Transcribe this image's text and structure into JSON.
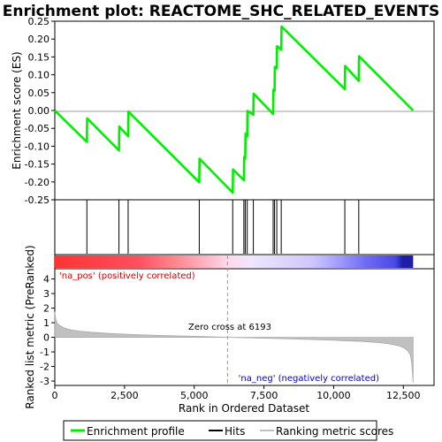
{
  "chart_data": {
    "type": "line",
    "title": "Enrichment plot: REACTOME_SHC_RELATED_EVENTS",
    "xlabel": "Rank in Ordered Dataset",
    "ylabel_top": "Enrichment score (ES)",
    "ylabel_bottom": "Ranked list metric (PreRanked)",
    "xlim": [
      0,
      13600
    ],
    "x_ticks": [
      0,
      2500,
      5000,
      7500,
      10000,
      12500
    ],
    "x_tick_labels": [
      "0",
      "2,500",
      "5,000",
      "7,500",
      "10,000",
      "12,500"
    ],
    "es_ylim": [
      -0.25,
      0.25
    ],
    "es_ticks": [
      -0.25,
      -0.2,
      -0.15,
      -0.1,
      -0.05,
      0.0,
      0.05,
      0.1,
      0.15,
      0.2,
      0.25
    ],
    "es_tick_labels": [
      "-0.25",
      "-0.20",
      "-0.15",
      "-0.10",
      "-0.05",
      "0.00",
      "0.05",
      "0.10",
      "0.15",
      "0.20",
      "0.25"
    ],
    "metric_ylim": [
      -3.3,
      4.7
    ],
    "metric_ticks": [
      -3,
      -2,
      -1,
      0,
      1,
      2,
      3,
      4
    ],
    "metric_tick_labels": [
      "-3",
      "-2",
      "-1",
      "0",
      "1",
      "2",
      "3",
      "4"
    ],
    "enrichment_profile": {
      "name": "Enrichment profile",
      "color": "#00ee00",
      "x": [
        0,
        1150,
        1160,
        2300,
        2310,
        2630,
        2640,
        5180,
        5190,
        6380,
        6390,
        6780,
        6790,
        6830,
        6840,
        6900,
        6910,
        7120,
        7130,
        7830,
        7840,
        7880,
        7890,
        7960,
        7970,
        8120,
        8130,
        10400,
        10410,
        10900,
        10910,
        12850
      ],
      "y": [
        0.0,
        -0.088,
        -0.022,
        -0.112,
        -0.045,
        -0.072,
        -0.003,
        -0.201,
        -0.135,
        -0.23,
        -0.165,
        -0.195,
        -0.13,
        -0.135,
        -0.065,
        -0.072,
        -0.001,
        -0.012,
        0.047,
        -0.01,
        0.058,
        0.055,
        0.122,
        0.118,
        0.18,
        0.17,
        0.235,
        0.06,
        0.125,
        0.083,
        0.152,
        0.0
      ]
    },
    "hits": [
      1150,
      2300,
      2630,
      5180,
      6380,
      6780,
      6830,
      6900,
      7120,
      7830,
      7880,
      7960,
      8120,
      10400,
      10900
    ],
    "ranked_metric": {
      "x": [
        0,
        30,
        80,
        150,
        250,
        400,
        600,
        900,
        1300,
        2000,
        3000,
        4000,
        5000,
        6193,
        7000,
        8000,
        9000,
        10000,
        11000,
        11600,
        12000,
        12300,
        12500,
        12650,
        12750,
        12800,
        12830,
        12850
      ],
      "y": [
        1.75,
        1.3,
        1.0,
        0.85,
        0.72,
        0.6,
        0.5,
        0.42,
        0.35,
        0.26,
        0.18,
        0.12,
        0.07,
        0.0,
        -0.04,
        -0.09,
        -0.14,
        -0.2,
        -0.28,
        -0.36,
        -0.45,
        -0.56,
        -0.7,
        -0.9,
        -1.2,
        -1.8,
        -2.5,
        -3.1
      ]
    },
    "zero_cross_label": "Zero cross at 6193",
    "zero_cross_x": 6193,
    "pos_label": "'na_pos' (positively correlated)",
    "neg_label": "'na_neg' (negatively correlated)",
    "legend": [
      {
        "label": "Enrichment profile",
        "color": "#00ee00"
      },
      {
        "label": "Hits",
        "color": "#000000"
      },
      {
        "label": "Ranking metric scores",
        "color": "#c0c0c0"
      }
    ]
  }
}
